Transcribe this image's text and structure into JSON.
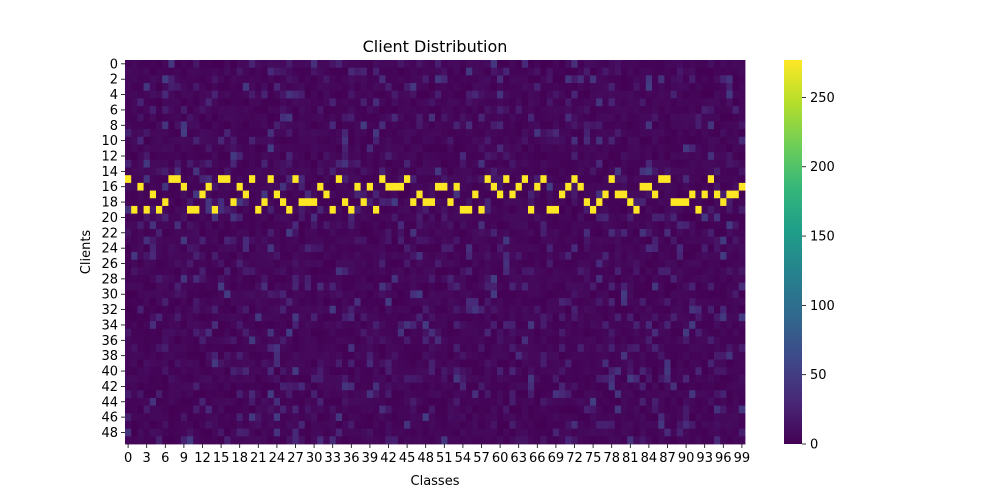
{
  "chart_data": {
    "type": "heatmap",
    "title": "Client Distribution",
    "xlabel": "Classes",
    "ylabel": "Clients",
    "x_range": [
      0,
      99
    ],
    "y_range": [
      0,
      49
    ],
    "x_tick_labels": [
      "0",
      "3",
      "6",
      "9",
      "12",
      "15",
      "18",
      "21",
      "24",
      "27",
      "30",
      "33",
      "36",
      "39",
      "42",
      "45",
      "48",
      "51",
      "54",
      "57",
      "60",
      "63",
      "66",
      "69",
      "72",
      "75",
      "78",
      "81",
      "84",
      "87",
      "90",
      "93",
      "96",
      "99"
    ],
    "y_tick_labels": [
      "0",
      "2",
      "4",
      "6",
      "8",
      "10",
      "12",
      "14",
      "16",
      "18",
      "20",
      "22",
      "24",
      "26",
      "28",
      "30",
      "32",
      "34",
      "36",
      "38",
      "40",
      "42",
      "44",
      "46",
      "48"
    ],
    "colorbar": {
      "range": [
        0,
        277
      ],
      "ticks": [
        "0",
        "50",
        "100",
        "150",
        "200",
        "250"
      ],
      "colormap": "viridis",
      "stops": [
        "#440154",
        "#482878",
        "#3e4989",
        "#31688e",
        "#26828e",
        "#1f9e89",
        "#35b779",
        "#6ece58",
        "#b5de2b",
        "#fde725"
      ]
    },
    "dominant_cells": [
      [
        0,
        15
      ],
      [
        1,
        19
      ],
      [
        2,
        16
      ],
      [
        3,
        19
      ],
      [
        4,
        17
      ],
      [
        5,
        19
      ],
      [
        6,
        18
      ],
      [
        7,
        15
      ],
      [
        8,
        15
      ],
      [
        9,
        16
      ],
      [
        10,
        19
      ],
      [
        11,
        19
      ],
      [
        12,
        17
      ],
      [
        13,
        16
      ],
      [
        14,
        19
      ],
      [
        15,
        15
      ],
      [
        16,
        15
      ],
      [
        17,
        18
      ],
      [
        18,
        16
      ],
      [
        19,
        17
      ],
      [
        20,
        15
      ],
      [
        21,
        19
      ],
      [
        22,
        18
      ],
      [
        23,
        15
      ],
      [
        24,
        17
      ],
      [
        25,
        18
      ],
      [
        26,
        19
      ],
      [
        27,
        15
      ],
      [
        28,
        18
      ],
      [
        29,
        18
      ],
      [
        30,
        18
      ],
      [
        31,
        16
      ],
      [
        32,
        17
      ],
      [
        33,
        19
      ],
      [
        34,
        15
      ],
      [
        35,
        18
      ],
      [
        36,
        19
      ],
      [
        37,
        16
      ],
      [
        38,
        18
      ],
      [
        39,
        16
      ],
      [
        40,
        19
      ],
      [
        41,
        15
      ],
      [
        42,
        16
      ],
      [
        43,
        16
      ],
      [
        44,
        16
      ],
      [
        45,
        15
      ],
      [
        46,
        18
      ],
      [
        47,
        17
      ],
      [
        48,
        18
      ],
      [
        49,
        18
      ],
      [
        50,
        16
      ],
      [
        51,
        16
      ],
      [
        52,
        18
      ],
      [
        53,
        16
      ],
      [
        54,
        19
      ],
      [
        55,
        19
      ],
      [
        56,
        17
      ],
      [
        57,
        19
      ],
      [
        58,
        15
      ],
      [
        59,
        16
      ],
      [
        60,
        17
      ],
      [
        61,
        15
      ],
      [
        62,
        17
      ],
      [
        63,
        16
      ],
      [
        64,
        15
      ],
      [
        65,
        19
      ],
      [
        66,
        16
      ],
      [
        67,
        15
      ],
      [
        68,
        19
      ],
      [
        69,
        19
      ],
      [
        70,
        17
      ],
      [
        71,
        16
      ],
      [
        72,
        15
      ],
      [
        73,
        16
      ],
      [
        74,
        18
      ],
      [
        75,
        19
      ],
      [
        76,
        18
      ],
      [
        77,
        17
      ],
      [
        78,
        15
      ],
      [
        79,
        17
      ],
      [
        80,
        17
      ],
      [
        81,
        18
      ],
      [
        82,
        19
      ],
      [
        83,
        16
      ],
      [
        84,
        16
      ],
      [
        85,
        17
      ],
      [
        86,
        15
      ],
      [
        87,
        15
      ],
      [
        88,
        18
      ],
      [
        89,
        18
      ],
      [
        90,
        18
      ],
      [
        91,
        17
      ],
      [
        92,
        19
      ],
      [
        93,
        17
      ],
      [
        94,
        15
      ],
      [
        95,
        17
      ],
      [
        96,
        18
      ],
      [
        97,
        17
      ],
      [
        98,
        17
      ],
      [
        99,
        16
      ]
    ],
    "dominant_value": 277,
    "background_value_range": [
      0,
      50
    ]
  }
}
